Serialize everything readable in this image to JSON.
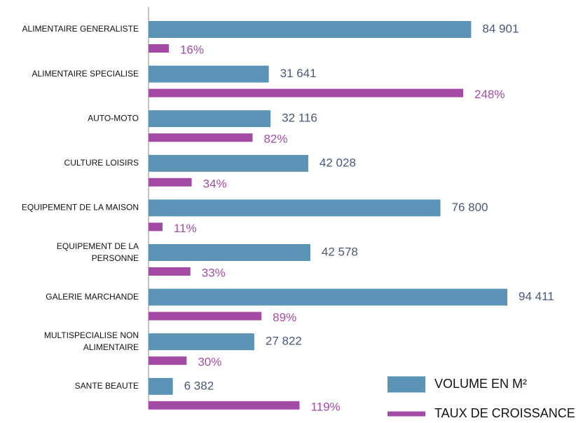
{
  "chart_data": {
    "type": "bar",
    "orientation": "horizontal",
    "categories": [
      "ALIMENTAIRE GENERALISTE",
      "ALIMENTAIRE SPECIALISE",
      "AUTO-MOTO",
      "CULTURE LOISIRS",
      "EQUIPEMENT DE LA MAISON",
      "EQUIPEMENT DE LA PERSONNE",
      "GALERIE MARCHANDE",
      "MULTISPECIALISE NON ALIMENTAIRE",
      "SANTE BEAUTE"
    ],
    "series": [
      {
        "name": "VOLUME EN M²",
        "color": "#5b93b6",
        "values": [
          84901,
          31641,
          32116,
          42028,
          76800,
          42578,
          94411,
          27822,
          6382
        ],
        "value_labels": [
          "84 901",
          "31 641",
          "32 116",
          "42 028",
          "76 800",
          "42 578",
          "94 411",
          "27 822",
          "6 382"
        ]
      },
      {
        "name": "TAUX DE CROISSANCE",
        "color": "#a34ba4",
        "values": [
          16,
          248,
          82,
          34,
          11,
          33,
          89,
          30,
          119
        ],
        "value_labels": [
          "16%",
          "248%",
          "82%",
          "34%",
          "11%",
          "33%",
          "89%",
          "30%",
          "119%"
        ]
      }
    ],
    "legend": "lower right"
  }
}
